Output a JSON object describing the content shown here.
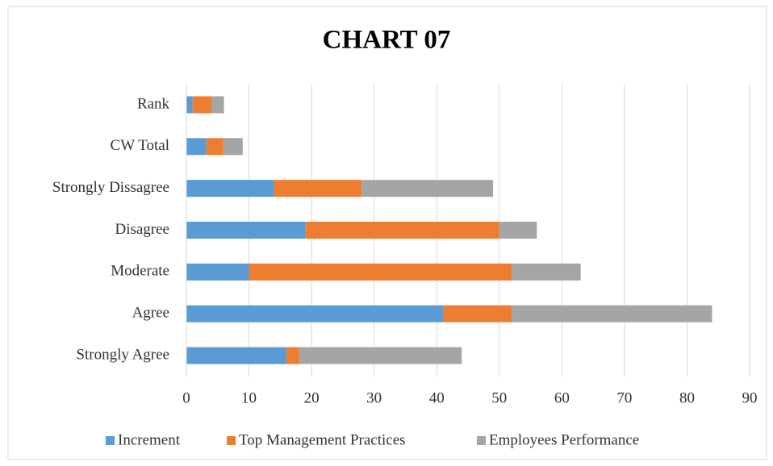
{
  "chart_data": {
    "type": "stacked-barh",
    "title": "CHART 07",
    "categories": [
      "Strongly Agree",
      "Agree",
      "Moderate",
      "Disagree",
      "Strongly Dissagree",
      "CW Total",
      "Rank"
    ],
    "series": [
      {
        "name": "Increment",
        "color": "#5b9bd5",
        "values": [
          16,
          41,
          10,
          19,
          14,
          3.2,
          1
        ]
      },
      {
        "name": "Top Management Practices",
        "color": "#ed7d31",
        "values": [
          2,
          11,
          42,
          31,
          14,
          2.7,
          3
        ]
      },
      {
        "name": "Employees Performance",
        "color": "#a5a5a5",
        "values": [
          26,
          32,
          11,
          6,
          21,
          3.1,
          2
        ]
      }
    ],
    "xlim": [
      0,
      90
    ],
    "xticks": [
      0,
      10,
      20,
      30,
      40,
      50,
      60,
      70,
      80,
      90
    ],
    "grid": true,
    "legend": "bottom"
  }
}
